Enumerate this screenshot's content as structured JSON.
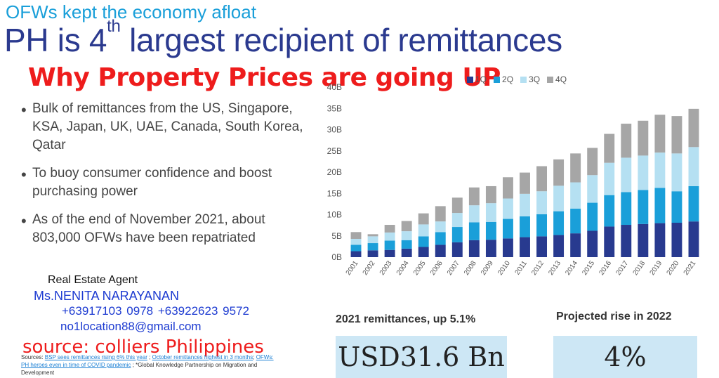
{
  "header": {
    "kicker": "OFWs kept the economy afloat",
    "headline_pre": "PH is 4",
    "headline_sup": "th",
    "headline_post": " largest recipient of remittances",
    "overlay_title": "Why Property Prices are going UP"
  },
  "bullets": [
    "Bulk of remittances from the US, Singapore, KSA, Japan, UK, UAE, Canada, South Korea, Qatar",
    "To buoy consumer confidence and boost purchasing power",
    "As of the end of November 2021, about 803,000 OFWs have been repatriated"
  ],
  "agent": {
    "role": "Real Estate Agent",
    "name": "Ms.NENITA NARAYANAN",
    "phones": "+63917103 0978   +63922623 9572",
    "email": "no1location88@gmail.com"
  },
  "source_overlay": "source: colliers Philippines",
  "sources_note": {
    "prefix": "Sources: ",
    "link1": "BSP sees remittances rising 6% this year",
    "sep1": " ; ",
    "link2": "October remittances highest in 3 months",
    "sep2": "; ",
    "link3": "OFWs: PH heroes even in time of COVID pandemic",
    "suffix": " ; *Global Knowledge Partnership on Migration and Development"
  },
  "stats": {
    "stat1_label": "2021 remittances, up 5.1%",
    "stat1_value": "USD31.6 Bn",
    "stat2_label": "Projected rise in 2022",
    "stat2_value": "4%"
  },
  "chart_data": {
    "type": "bar",
    "stacked": true,
    "categories": [
      "2001",
      "2002",
      "2003",
      "2004",
      "2005",
      "2006",
      "2007",
      "2008",
      "2009",
      "2010",
      "2011",
      "2012",
      "2013",
      "2014",
      "2015",
      "2016",
      "2017",
      "2018",
      "2019",
      "2020",
      "2021"
    ],
    "series": [
      {
        "name": "1Q",
        "color": "#283a8f",
        "values": [
          1.4,
          1.6,
          1.7,
          2.0,
          2.4,
          2.9,
          3.5,
          4.0,
          4.1,
          4.4,
          4.7,
          4.9,
          5.2,
          5.6,
          6.2,
          7.2,
          7.6,
          7.8,
          8.0,
          8.1,
          8.4
        ]
      },
      {
        "name": "2Q",
        "color": "#1a9fd9",
        "values": [
          1.5,
          1.7,
          2.2,
          2.0,
          2.5,
          3.0,
          3.6,
          4.2,
          4.2,
          4.6,
          4.9,
          5.2,
          5.6,
          5.8,
          6.6,
          7.4,
          7.7,
          8.0,
          8.3,
          7.4,
          8.3
        ]
      },
      {
        "name": "3Q",
        "color": "#b5e0f2",
        "values": [
          1.4,
          1.6,
          1.9,
          2.1,
          2.8,
          2.5,
          3.3,
          4.0,
          4.4,
          4.8,
          5.3,
          5.4,
          6.0,
          6.2,
          6.5,
          7.6,
          8.1,
          8.1,
          8.3,
          8.9,
          9.2
        ]
      },
      {
        "name": "4Q",
        "color": "#a6a6a6",
        "values": [
          1.6,
          0.5,
          1.8,
          2.4,
          2.6,
          3.6,
          3.6,
          4.2,
          4.0,
          5.0,
          5.0,
          5.9,
          6.2,
          6.8,
          6.4,
          6.8,
          8.0,
          8.2,
          8.9,
          8.8,
          9.0
        ]
      }
    ],
    "y_ticks": [
      "0B",
      "5B",
      "10B",
      "15B",
      "20B",
      "25B",
      "30B",
      "35B",
      "40B"
    ],
    "ylim": [
      0,
      40
    ],
    "legend_position": "top"
  }
}
